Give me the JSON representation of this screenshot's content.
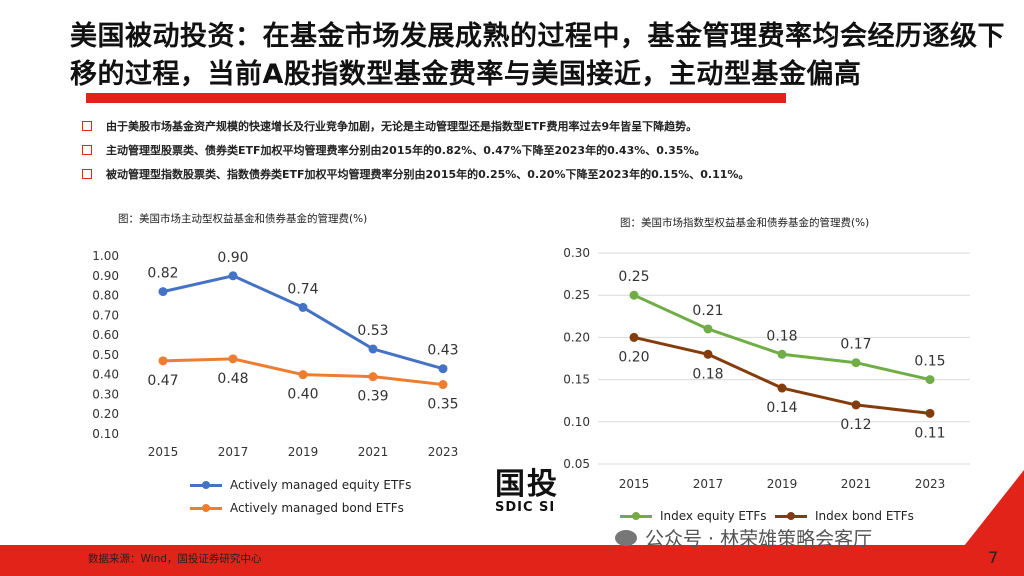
{
  "title": "美国被动投资：在基金市场发展成熟的过程中，基金管理费率均会经历逐级下移的过程，当前A股指数型基金费率与美国接近，主动型基金偏高",
  "bullets": [
    "由于美股市场基金资产规模的快速增长及行业竞争加剧，无论是主动管理型还是指数型ETF费用率过去9年皆呈下降趋势。",
    "主动管理型股票类、债券类ETF加权平均管理费率分别由2015年的0.82%、0.47%下降至2023年的0.43%、0.35%。",
    "被动管理型指数股票类、指数债券类ETF加权平均管理费率分别由2015年的0.25%、0.20%下降至2023年的0.15%、0.11%。"
  ],
  "colors": {
    "accent": "#e2231a",
    "active_equity": "#4472c4",
    "active_bond": "#ed7d31",
    "index_equity": "#70ad47",
    "index_bond": "#843c0c"
  },
  "logo": {
    "cn": "国投",
    "en": "SDIC SI"
  },
  "source": "数据来源：Wind，国投证券研究中心",
  "page_number": "7",
  "watermark": "公众号 · 林荣雄策略会客厅",
  "chart_data": [
    {
      "type": "line",
      "title": "图：美国市场主动型权益基金和债券基金的管理费(%)",
      "categories": [
        "2015",
        "2017",
        "2019",
        "2021",
        "2023"
      ],
      "series": [
        {
          "name": "Actively managed equity ETFs",
          "values": [
            0.82,
            0.9,
            0.74,
            0.53,
            0.43
          ],
          "color": "#4472c4"
        },
        {
          "name": "Actively managed bond ETFs",
          "values": [
            0.47,
            0.48,
            0.4,
            0.39,
            0.35
          ],
          "color": "#ed7d31"
        }
      ],
      "ylim": [
        0.1,
        1.0
      ],
      "yticks": [
        "0.10",
        "0.20",
        "0.30",
        "0.40",
        "0.50",
        "0.60",
        "0.70",
        "0.80",
        "0.90",
        "1.00"
      ],
      "grid": false,
      "legend": "bottom"
    },
    {
      "type": "line",
      "title": "图：美国市场指数型权益基金和债券基金的管理费(%)",
      "categories": [
        "2015",
        "2017",
        "2019",
        "2021",
        "2023"
      ],
      "series": [
        {
          "name": "Index equity ETFs",
          "values": [
            0.25,
            0.21,
            0.18,
            0.17,
            0.15
          ],
          "color": "#70ad47"
        },
        {
          "name": "Index bond ETFs",
          "values": [
            0.2,
            0.18,
            0.14,
            0.12,
            0.11
          ],
          "color": "#843c0c"
        }
      ],
      "ylim": [
        0.05,
        0.3
      ],
      "yticks": [
        "0.05",
        "0.10",
        "0.15",
        "0.20",
        "0.25",
        "0.30"
      ],
      "grid": true,
      "legend": "bottom"
    }
  ]
}
